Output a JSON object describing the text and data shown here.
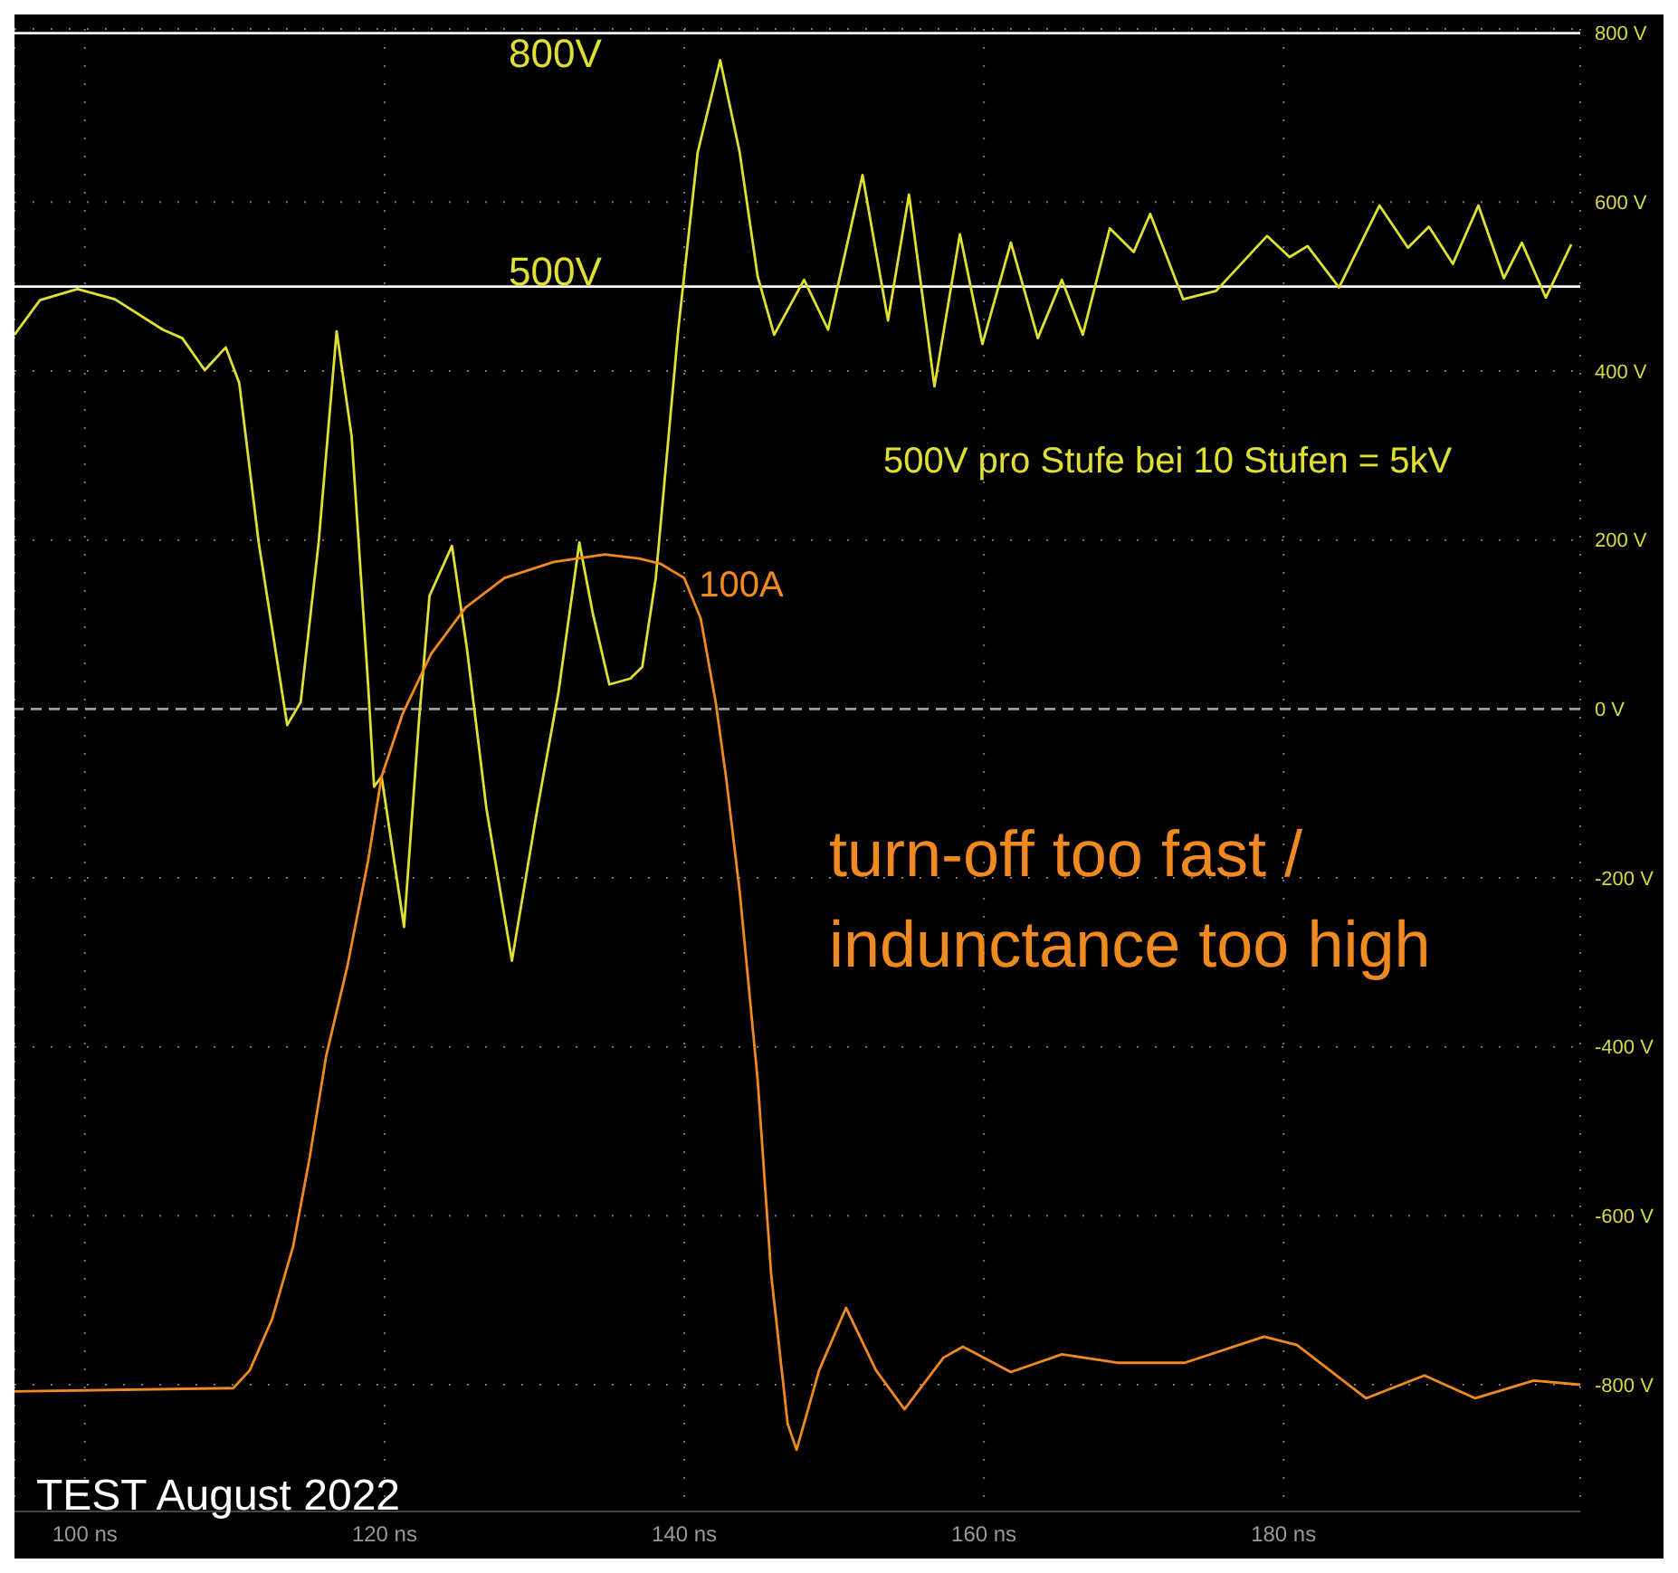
{
  "chart_data": {
    "type": "line",
    "x": [
      95.3,
      97.0,
      99.5,
      102.0,
      105.2,
      106.5,
      108.0,
      109.4,
      110.3,
      111.6,
      113.5,
      114.4,
      115.6,
      116.8,
      117.8,
      118.9,
      119.3,
      119.8,
      121.3,
      122.3,
      123.0,
      124.5,
      125.5,
      126.8,
      128.5,
      130.2,
      131.6,
      133.0,
      133.9,
      135.0,
      136.4,
      137.2,
      138.1,
      139.6,
      140.9,
      142.4,
      143.7,
      144.9,
      146.0,
      148.0,
      149.6,
      151.9,
      153.6,
      155.0,
      156.7,
      158.4,
      159.9,
      161.8,
      163.6,
      165.2,
      166.6,
      168.4,
      170.0,
      171.1,
      173.3,
      175.5,
      178.9,
      180.4,
      181.6,
      183.7,
      186.4,
      188.3,
      189.7,
      191.3,
      193.0,
      194.7,
      195.9,
      197.5,
      199.2
    ],
    "series": [
      {
        "color": "#e0e030",
        "values": [
          443,
          484,
          497,
          485,
          449,
          439,
          401,
          428,
          386,
          197,
          -19,
          8,
          197,
          447,
          323,
          29,
          -92,
          -80,
          -258,
          -13,
          134,
          193,
          71,
          -118,
          -298,
          -118,
          19,
          197,
          113,
          29,
          36,
          50,
          155,
          449,
          659,
          768,
          659,
          512,
          443,
          508,
          449,
          632,
          460,
          609,
          382,
          562,
          432,
          552,
          439,
          508,
          443,
          569,
          541,
          586,
          485,
          495,
          560,
          535,
          548,
          499,
          596,
          546,
          571,
          527,
          596,
          510,
          552,
          487,
          550
        ]
      },
      {
        "color": "#f08a1e",
        "x": [
          95.3,
          109.9,
          111.0,
          112.5,
          113.9,
          115.0,
          116.1,
          117.5,
          118.9,
          119.8,
          121.2,
          123.1,
          125.4,
          128.0,
          131.3,
          134.7,
          137.0,
          138.4,
          140.0,
          141.1,
          142.1,
          142.8,
          143.7,
          144.9,
          145.8,
          146.9,
          147.5,
          149.0,
          150.8,
          152.8,
          154.7,
          157.3,
          158.6,
          161.8,
          165.2,
          168.9,
          173.4,
          178.7,
          180.9,
          185.5,
          189.4,
          192.8,
          196.7,
          199.8
        ],
        "values": [
          -808,
          -804,
          -783,
          -722,
          -636,
          -531,
          -411,
          -306,
          -180,
          -80,
          -6,
          65,
          120,
          155,
          174,
          183,
          178,
          172,
          155,
          107,
          8,
          -82,
          -216,
          -439,
          -669,
          -846,
          -877,
          -783,
          -709,
          -783,
          -829,
          -768,
          -755,
          -785,
          -764,
          -774,
          -774,
          -743,
          -753,
          -816,
          -789,
          -816,
          -795,
          -800
        ]
      }
    ],
    "xlim": [
      95.3,
      199.8
    ],
    "xticks": [
      {
        "value": 100,
        "label": "100 ns"
      },
      {
        "value": 120,
        "label": "120 ns"
      },
      {
        "value": 140,
        "label": "140 ns"
      },
      {
        "value": 160,
        "label": "160 ns"
      },
      {
        "value": 180,
        "label": "180 ns"
      }
    ],
    "ylim": [
      -950,
      805
    ],
    "yticks": [
      {
        "value": 800,
        "label": "800 V"
      },
      {
        "value": 600,
        "label": "600 V"
      },
      {
        "value": 400,
        "label": "400 V"
      },
      {
        "value": 200,
        "label": "200 V"
      },
      {
        "value": 0,
        "label": "0 V"
      },
      {
        "value": -200,
        "label": "-200 V"
      },
      {
        "value": -400,
        "label": "-400 V"
      },
      {
        "value": -600,
        "label": "-600 V"
      },
      {
        "value": -800,
        "label": "-800 V"
      }
    ],
    "ref_lines": [
      {
        "axis": "y",
        "value": 800,
        "label": "800V",
        "color": "#ffffff"
      },
      {
        "axis": "y",
        "value": 500,
        "label": "500V",
        "color": "#ffffff"
      },
      {
        "axis": "y",
        "value": 0,
        "label": null,
        "color": "#a0a0a0",
        "line_style": "dashed"
      }
    ],
    "annotations": [
      "500V pro Stufe bei 10 Stufen = 5kV",
      {
        "text": "100A",
        "x": 137,
        "y": 178
      },
      "turn-off too fast /",
      "indunctance too high",
      "TEST August 2022"
    ],
    "grid": true,
    "marker": "none",
    "line_style": "solid",
    "legend": false
  }
}
